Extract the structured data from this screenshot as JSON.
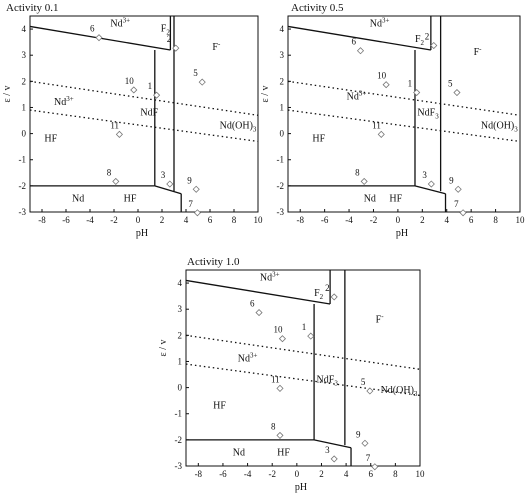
{
  "chart_data": [
    {
      "type": "line",
      "title": "Activity 0.1",
      "xlabel": "pH",
      "ylabel": "ε / v",
      "xlim": [
        -9,
        10
      ],
      "ylim": [
        -3,
        4.5
      ],
      "xticks": [
        "-8",
        "-6",
        "-4",
        "-2",
        "0",
        "2",
        "4",
        "6",
        "8",
        "10"
      ],
      "yticks": [
        "-3",
        "-2",
        "-1",
        "0",
        "1",
        "2",
        "3",
        "4"
      ],
      "boundaries": [
        {
          "x": [
            -9,
            2.7
          ],
          "y": [
            4.1,
            3.2
          ]
        },
        {
          "x": [
            2.7,
            2.7
          ],
          "y": [
            3.2,
            4.5
          ]
        },
        {
          "x": [
            1.4,
            1.4
          ],
          "y": [
            -2.0,
            3.2
          ]
        },
        {
          "x": [
            3.0,
            3.0
          ],
          "y": [
            -2.2,
            4.5
          ]
        },
        {
          "x": [
            -9,
            1.4
          ],
          "y": [
            -2.0,
            -2.0
          ]
        },
        {
          "x": [
            1.4,
            3.6
          ],
          "y": [
            -2.0,
            -2.3
          ]
        },
        {
          "x": [
            3.6,
            3.6
          ],
          "y": [
            -2.3,
            -3.0
          ]
        }
      ],
      "water_lines": [
        {
          "x": [
            -9,
            10
          ],
          "y": [
            2.0,
            0.7
          ]
        },
        {
          "x": [
            -9,
            10
          ],
          "y": [
            0.9,
            -0.3
          ]
        }
      ],
      "region_labels": [
        {
          "text": "Nd",
          "sup": "3+",
          "sub": "",
          "x": -2.3,
          "y": 4.1
        },
        {
          "text": "F",
          "sup": "",
          "sub": "2",
          "x": 1.9,
          "y": 3.9
        },
        {
          "text": "F",
          "sup": "-",
          "sub": "",
          "x": 6.2,
          "y": 3.2
        },
        {
          "text": "Nd",
          "sup": "3+",
          "sub": "",
          "x": -7.0,
          "y": 1.1
        },
        {
          "text": "NdF",
          "sup": "",
          "sub": "",
          "x": 0.2,
          "y": 0.7
        },
        {
          "text": "Nd(OH)",
          "sup": "",
          "sub": "3",
          "x": 6.8,
          "y": 0.2
        },
        {
          "text": "HF",
          "sup": "",
          "sub": "",
          "x": -7.8,
          "y": -0.3
        },
        {
          "text": "Nd",
          "sup": "",
          "sub": "",
          "x": -5.5,
          "y": -2.6
        },
        {
          "text": "HF",
          "sup": "",
          "sub": "",
          "x": -1.2,
          "y": -2.6
        }
      ],
      "line_numbers": [
        {
          "label": "1",
          "x": 0.8,
          "y": 1.7
        },
        {
          "label": "2",
          "x": 2.4,
          "y": 3.5
        },
        {
          "label": "3",
          "x": 1.9,
          "y": -1.7
        },
        {
          "label": "5",
          "x": 4.6,
          "y": 2.2
        },
        {
          "label": "6",
          "x": -4.0,
          "y": 3.9
        },
        {
          "label": "7",
          "x": 4.2,
          "y": -2.8
        },
        {
          "label": "8",
          "x": -2.6,
          "y": -1.6
        },
        {
          "label": "9",
          "x": 4.1,
          "y": -1.9
        },
        {
          "label": "10",
          "x": -1.1,
          "y": 1.9
        },
        {
          "label": "11",
          "x": -2.3,
          "y": 0.2
        }
      ]
    },
    {
      "type": "line",
      "title": "Activity 0.5",
      "xlabel": "pH",
      "ylabel": "ε / v",
      "xlim": [
        -9,
        10
      ],
      "ylim": [
        -3,
        4.5
      ],
      "xticks": [
        "-8",
        "-6",
        "-4",
        "-2",
        "0",
        "2",
        "4",
        "6",
        "8",
        "10"
      ],
      "yticks": [
        "-3",
        "-2",
        "-1",
        "0",
        "1",
        "2",
        "3",
        "4"
      ],
      "boundaries": [
        {
          "x": [
            -9,
            2.7
          ],
          "y": [
            4.1,
            3.2
          ]
        },
        {
          "x": [
            2.7,
            2.7
          ],
          "y": [
            3.2,
            4.5
          ]
        },
        {
          "x": [
            1.4,
            1.4
          ],
          "y": [
            -2.0,
            3.2
          ]
        },
        {
          "x": [
            3.5,
            3.5
          ],
          "y": [
            -2.2,
            4.5
          ]
        },
        {
          "x": [
            -9,
            1.4
          ],
          "y": [
            -2.0,
            -2.0
          ]
        },
        {
          "x": [
            1.4,
            3.9
          ],
          "y": [
            -2.0,
            -2.3
          ]
        },
        {
          "x": [
            3.9,
            3.9
          ],
          "y": [
            -2.3,
            -3.0
          ]
        }
      ],
      "water_lines": [
        {
          "x": [
            -9,
            10
          ],
          "y": [
            2.0,
            0.7
          ]
        },
        {
          "x": [
            -9,
            10
          ],
          "y": [
            0.9,
            -0.3
          ]
        }
      ],
      "region_labels": [
        {
          "text": "Nd",
          "sup": "3+",
          "sub": "",
          "x": -2.3,
          "y": 4.1
        },
        {
          "text": "F",
          "sup": "",
          "sub": "2",
          "x": 1.4,
          "y": 3.5
        },
        {
          "text": "F",
          "sup": "-",
          "sub": "",
          "x": 6.2,
          "y": 3.0
        },
        {
          "text": "Nd",
          "sup": "3+",
          "sub": "",
          "x": -4.2,
          "y": 1.3
        },
        {
          "text": "NdF",
          "sup": "",
          "sub": "3",
          "x": 1.6,
          "y": 0.7
        },
        {
          "text": "Nd(OH)",
          "sup": "",
          "sub": "3",
          "x": 6.8,
          "y": 0.2
        },
        {
          "text": "HF",
          "sup": "",
          "sub": "",
          "x": -7.0,
          "y": -0.3
        },
        {
          "text": "Nd",
          "sup": "",
          "sub": "",
          "x": -2.8,
          "y": -2.6
        },
        {
          "text": "HF",
          "sup": "",
          "sub": "",
          "x": -0.7,
          "y": -2.6
        }
      ],
      "line_numbers": [
        {
          "label": "1",
          "x": 0.8,
          "y": 1.8
        },
        {
          "label": "2",
          "x": 2.2,
          "y": 3.6
        },
        {
          "label": "3",
          "x": 2.0,
          "y": -1.7
        },
        {
          "label": "5",
          "x": 4.1,
          "y": 1.8
        },
        {
          "label": "6",
          "x": -3.8,
          "y": 3.4
        },
        {
          "label": "7",
          "x": 4.6,
          "y": -2.8
        },
        {
          "label": "8",
          "x": -3.5,
          "y": -1.6
        },
        {
          "label": "9",
          "x": 4.2,
          "y": -1.9
        },
        {
          "label": "10",
          "x": -1.7,
          "y": 2.1
        },
        {
          "label": "11",
          "x": -2.1,
          "y": 0.2
        }
      ]
    },
    {
      "type": "line",
      "title": "Activity 1.0",
      "xlabel": "pH",
      "ylabel": "ε / v",
      "xlim": [
        -9,
        10
      ],
      "ylim": [
        -3,
        4.5
      ],
      "xticks": [
        "-8",
        "-6",
        "-4",
        "-2",
        "0",
        "2",
        "4",
        "6",
        "8",
        "10"
      ],
      "yticks": [
        "-3",
        "-2",
        "-1",
        "0",
        "1",
        "2",
        "3",
        "4"
      ],
      "boundaries": [
        {
          "x": [
            -9,
            2.7
          ],
          "y": [
            4.1,
            3.2
          ]
        },
        {
          "x": [
            2.7,
            2.7
          ],
          "y": [
            3.2,
            4.5
          ]
        },
        {
          "x": [
            1.4,
            1.4
          ],
          "y": [
            -2.0,
            3.2
          ]
        },
        {
          "x": [
            3.9,
            3.9
          ],
          "y": [
            -2.2,
            4.5
          ]
        },
        {
          "x": [
            -9,
            1.4
          ],
          "y": [
            -2.0,
            -2.0
          ]
        },
        {
          "x": [
            1.4,
            4.4
          ],
          "y": [
            -2.0,
            -2.3
          ]
        },
        {
          "x": [
            4.4,
            4.4
          ],
          "y": [
            -2.3,
            -3.0
          ]
        }
      ],
      "water_lines": [
        {
          "x": [
            -9,
            10
          ],
          "y": [
            2.0,
            0.7
          ]
        },
        {
          "x": [
            -9,
            10
          ],
          "y": [
            0.9,
            -0.3
          ]
        }
      ],
      "region_labels": [
        {
          "text": "Nd",
          "sup": "3+",
          "sub": "",
          "x": -3.0,
          "y": 4.1
        },
        {
          "text": "F",
          "sup": "",
          "sub": "2",
          "x": 1.4,
          "y": 3.5
        },
        {
          "text": "F",
          "sup": "-",
          "sub": "",
          "x": 6.4,
          "y": 2.5
        },
        {
          "text": "Nd",
          "sup": "3+",
          "sub": "",
          "x": -4.8,
          "y": 1.0
        },
        {
          "text": "NdF",
          "sup": "",
          "sub": "3",
          "x": 1.6,
          "y": 0.2
        },
        {
          "text": "Nd(OH)",
          "sup": "",
          "sub": "3",
          "x": 6.8,
          "y": -0.2
        },
        {
          "text": "HF",
          "sup": "",
          "sub": "",
          "x": -6.8,
          "y": -0.8
        },
        {
          "text": "Nd",
          "sup": "",
          "sub": "",
          "x": -5.2,
          "y": -2.6
        },
        {
          "text": "HF",
          "sup": "",
          "sub": "",
          "x": -1.6,
          "y": -2.6
        }
      ],
      "line_numbers": [
        {
          "label": "1",
          "x": 0.4,
          "y": 2.2
        },
        {
          "label": "2",
          "x": 2.3,
          "y": 3.7
        },
        {
          "label": "3",
          "x": 2.3,
          "y": -2.5
        },
        {
          "label": "5",
          "x": 5.2,
          "y": 0.1
        },
        {
          "label": "6",
          "x": -3.8,
          "y": 3.1
        },
        {
          "label": "7",
          "x": 5.6,
          "y": -2.8
        },
        {
          "label": "8",
          "x": -2.1,
          "y": -1.6
        },
        {
          "label": "9",
          "x": 4.8,
          "y": -1.9
        },
        {
          "label": "10",
          "x": -1.9,
          "y": 2.1
        },
        {
          "label": "11",
          "x": -2.1,
          "y": 0.2
        }
      ]
    }
  ]
}
